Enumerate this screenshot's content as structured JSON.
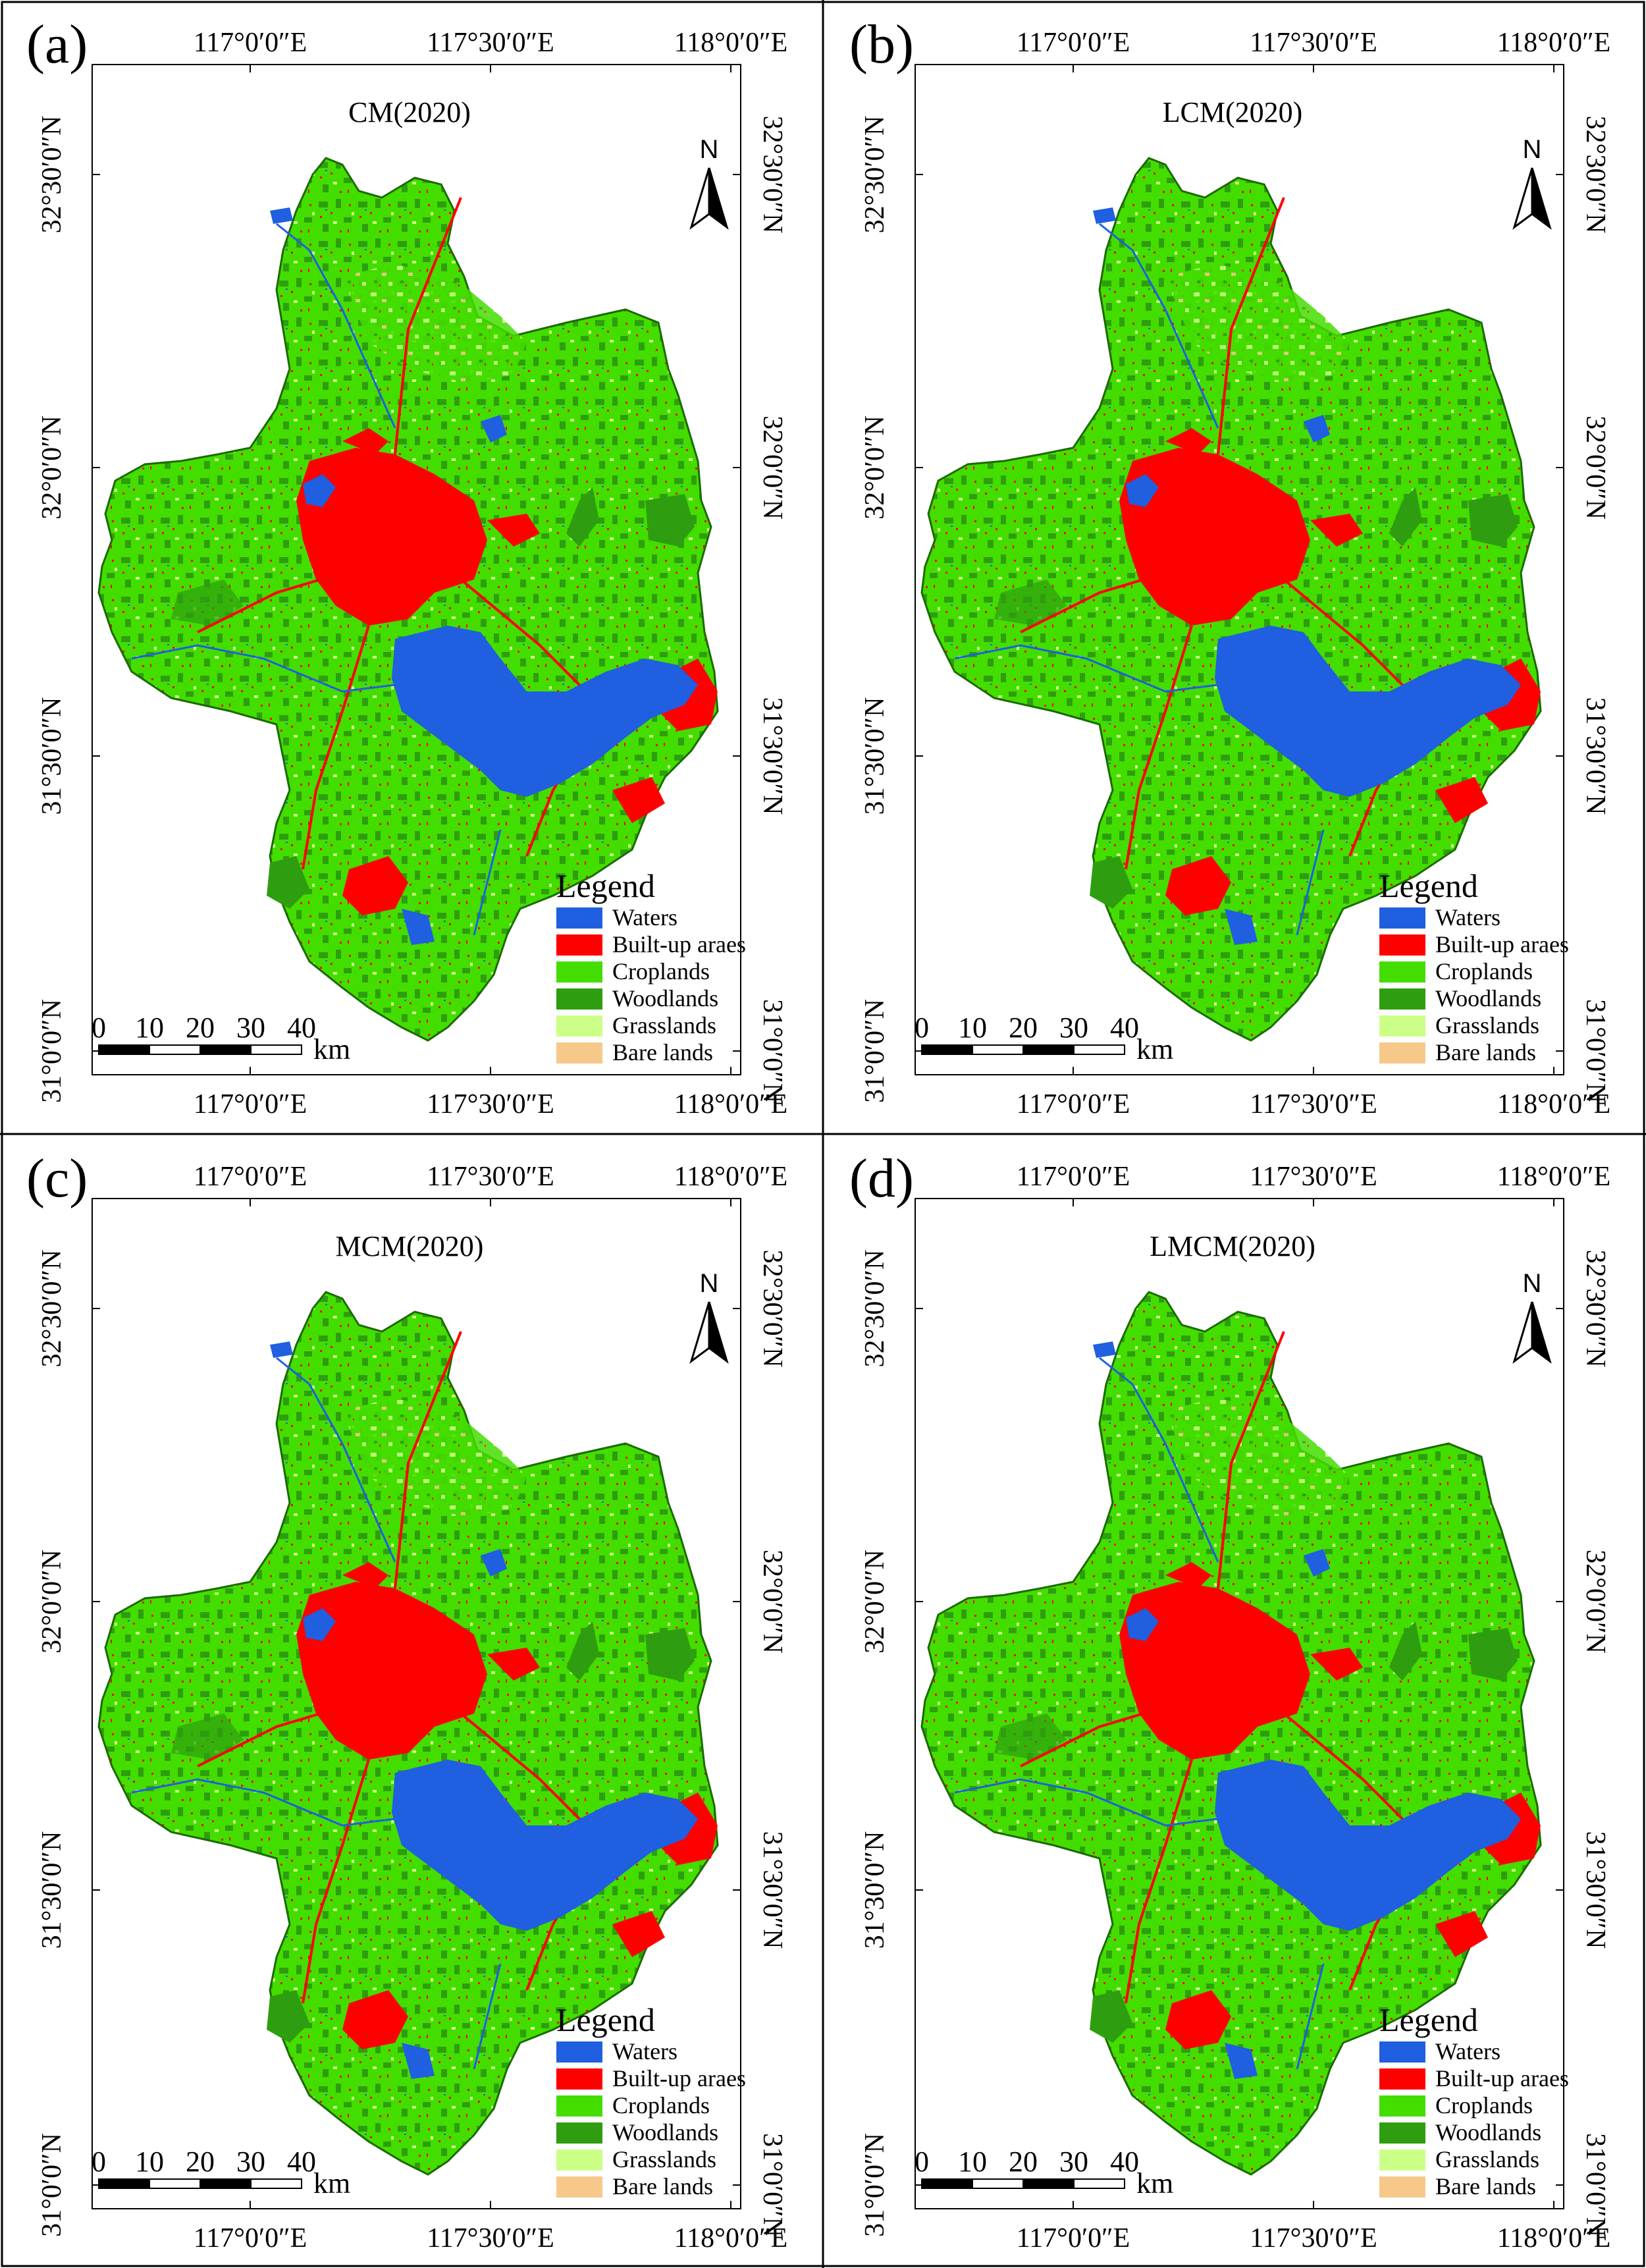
{
  "figure": {
    "colors": {
      "waters": "#1f5fe0",
      "built_up": "#ff0000",
      "croplands": "#44dd00",
      "woodlands": "#2e9e10",
      "grasslands": "#ccff88",
      "bare_lands": "#f6c98a",
      "frame": "#000000",
      "background": "#ffffff"
    },
    "panels": [
      {
        "label": "(a)",
        "title": "CM(2020)"
      },
      {
        "label": "(b)",
        "title": "LCM(2020)"
      },
      {
        "label": "(c)",
        "title": "MCM(2020)"
      },
      {
        "label": "(d)",
        "title": "LMCM(2020)"
      }
    ],
    "longitude_labels": [
      "117°0′0″E",
      "117°30′0″E",
      "118°0′0″E"
    ],
    "latitude_labels": [
      "32°30′0″N",
      "32°0′0″N",
      "31°30′0″N",
      "31°0′0″N"
    ],
    "north_label": "N",
    "legend": {
      "title": "Legend",
      "items": [
        {
          "label": "Waters",
          "color_key": "waters"
        },
        {
          "label": "Built-up araes",
          "color_key": "built_up"
        },
        {
          "label": "Croplands",
          "color_key": "croplands"
        },
        {
          "label": "Woodlands",
          "color_key": "woodlands"
        },
        {
          "label": "Grasslands",
          "color_key": "grasslands"
        },
        {
          "label": "Bare lands",
          "color_key": "bare_lands"
        }
      ]
    },
    "scale_bar": {
      "ticks": [
        "0",
        "10",
        "20",
        "30",
        "40"
      ],
      "unit": "km"
    }
  }
}
